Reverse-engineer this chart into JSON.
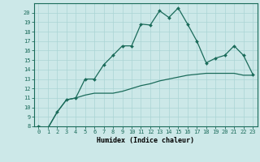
{
  "title": "",
  "xlabel": "Humidex (Indice chaleur)",
  "background_color": "#cce8e8",
  "line_color": "#1a6b5a",
  "grid_color": "#aad4d4",
  "x_line1": [
    0,
    1,
    2,
    3,
    4,
    5,
    6,
    7,
    8,
    9,
    10,
    11,
    12,
    13,
    14,
    15,
    16,
    17,
    18,
    19,
    20,
    21,
    22,
    23
  ],
  "y_line1": [
    8.0,
    7.8,
    9.5,
    10.8,
    11.0,
    13.0,
    13.0,
    14.5,
    15.5,
    16.5,
    16.5,
    18.8,
    18.7,
    20.2,
    19.5,
    20.5,
    18.8,
    17.0,
    14.7,
    15.2,
    15.5,
    16.5,
    15.5,
    13.5
  ],
  "x_line2": [
    0,
    1,
    2,
    3,
    4,
    5,
    6,
    7,
    8,
    9,
    10,
    11,
    12,
    13,
    14,
    15,
    16,
    17,
    18,
    19,
    20,
    21,
    22,
    23
  ],
  "y_line2": [
    8.0,
    7.8,
    9.5,
    10.8,
    11.0,
    11.3,
    11.5,
    11.5,
    11.5,
    11.7,
    12.0,
    12.3,
    12.5,
    12.8,
    13.0,
    13.2,
    13.4,
    13.5,
    13.6,
    13.6,
    13.6,
    13.6,
    13.4,
    13.4
  ],
  "xlim": [
    -0.5,
    23.5
  ],
  "ylim": [
    8,
    21
  ],
  "yticks": [
    8,
    9,
    10,
    11,
    12,
    13,
    14,
    15,
    16,
    17,
    18,
    19,
    20
  ],
  "xticks": [
    0,
    1,
    2,
    3,
    4,
    5,
    6,
    7,
    8,
    9,
    10,
    11,
    12,
    13,
    14,
    15,
    16,
    17,
    18,
    19,
    20,
    21,
    22,
    23
  ],
  "tick_fontsize": 5,
  "xlabel_fontsize": 6
}
